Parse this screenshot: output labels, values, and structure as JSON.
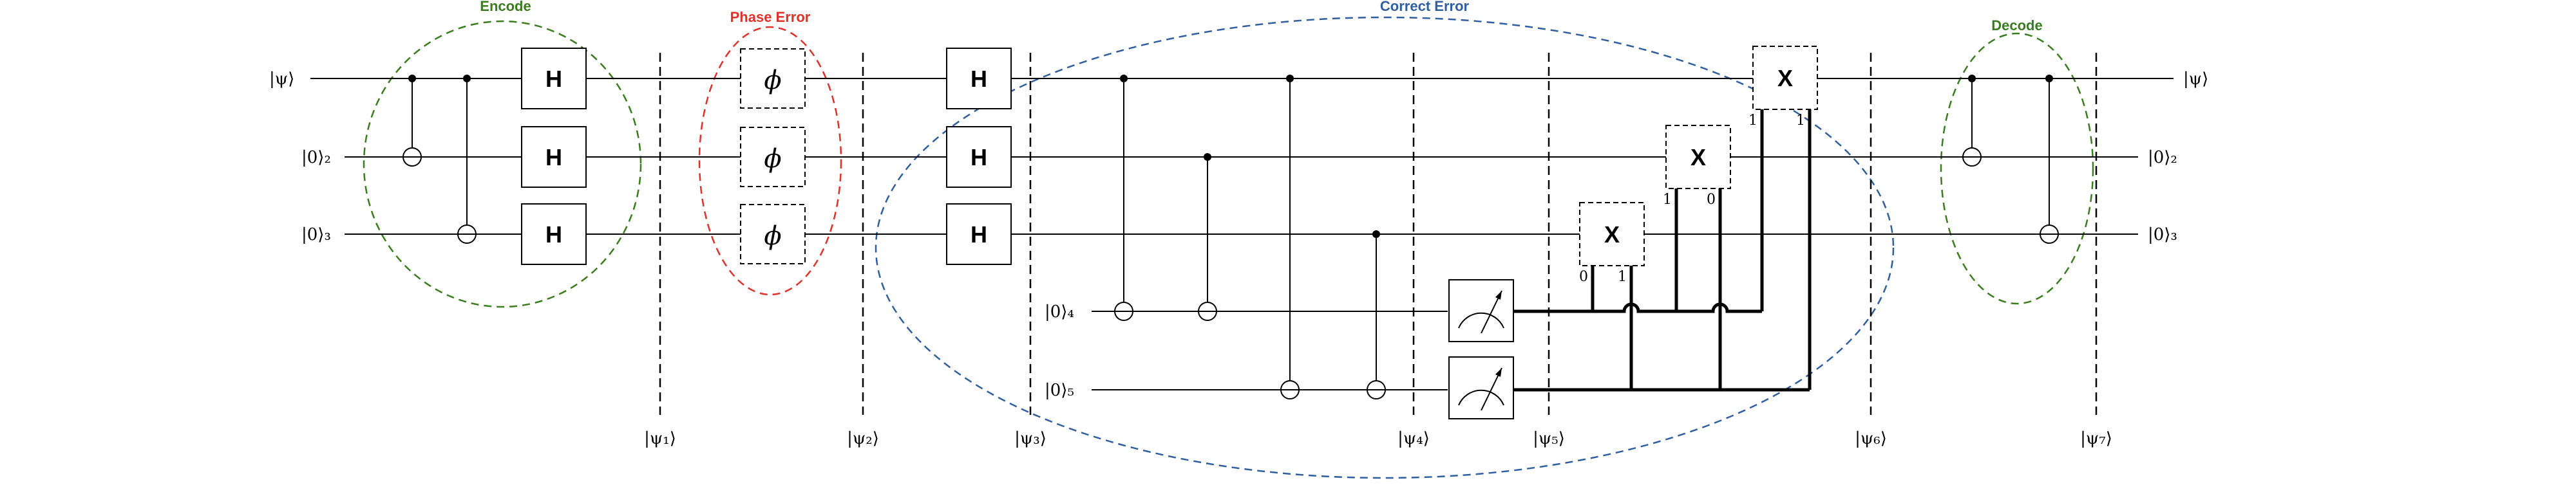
{
  "groups": {
    "encode": {
      "title": "Encode",
      "color": "#3a7d1e"
    },
    "phase_error": {
      "title": "Phase Error",
      "color": "#e0302a"
    },
    "correct_error": {
      "title": "Correct Error",
      "color": "#2f5f9e"
    },
    "decode": {
      "title": "Decode",
      "color": "#3a7d1e"
    }
  },
  "wires": {
    "q1_in": "|ψ⟩",
    "q2_in": "|0⟩₂",
    "q3_in": "|0⟩₃",
    "a4_in": "|0⟩₄",
    "a5_in": "|0⟩₅",
    "q1_out": "|ψ⟩",
    "q2_out": "|0⟩₂",
    "q3_out": "|0⟩₃"
  },
  "gates": {
    "hadamard": "H",
    "phase": "ϕ",
    "pauli_x": "X"
  },
  "condition_bits": {
    "x_q3": [
      "0",
      "1"
    ],
    "x_q2": [
      "1",
      "0"
    ],
    "x_q1": [
      "1",
      "1"
    ]
  },
  "stages": [
    "|ψ₁⟩",
    "|ψ₂⟩",
    "|ψ₃⟩",
    "|ψ₄⟩",
    "|ψ₅⟩",
    "|ψ₆⟩",
    "|ψ₇⟩"
  ]
}
